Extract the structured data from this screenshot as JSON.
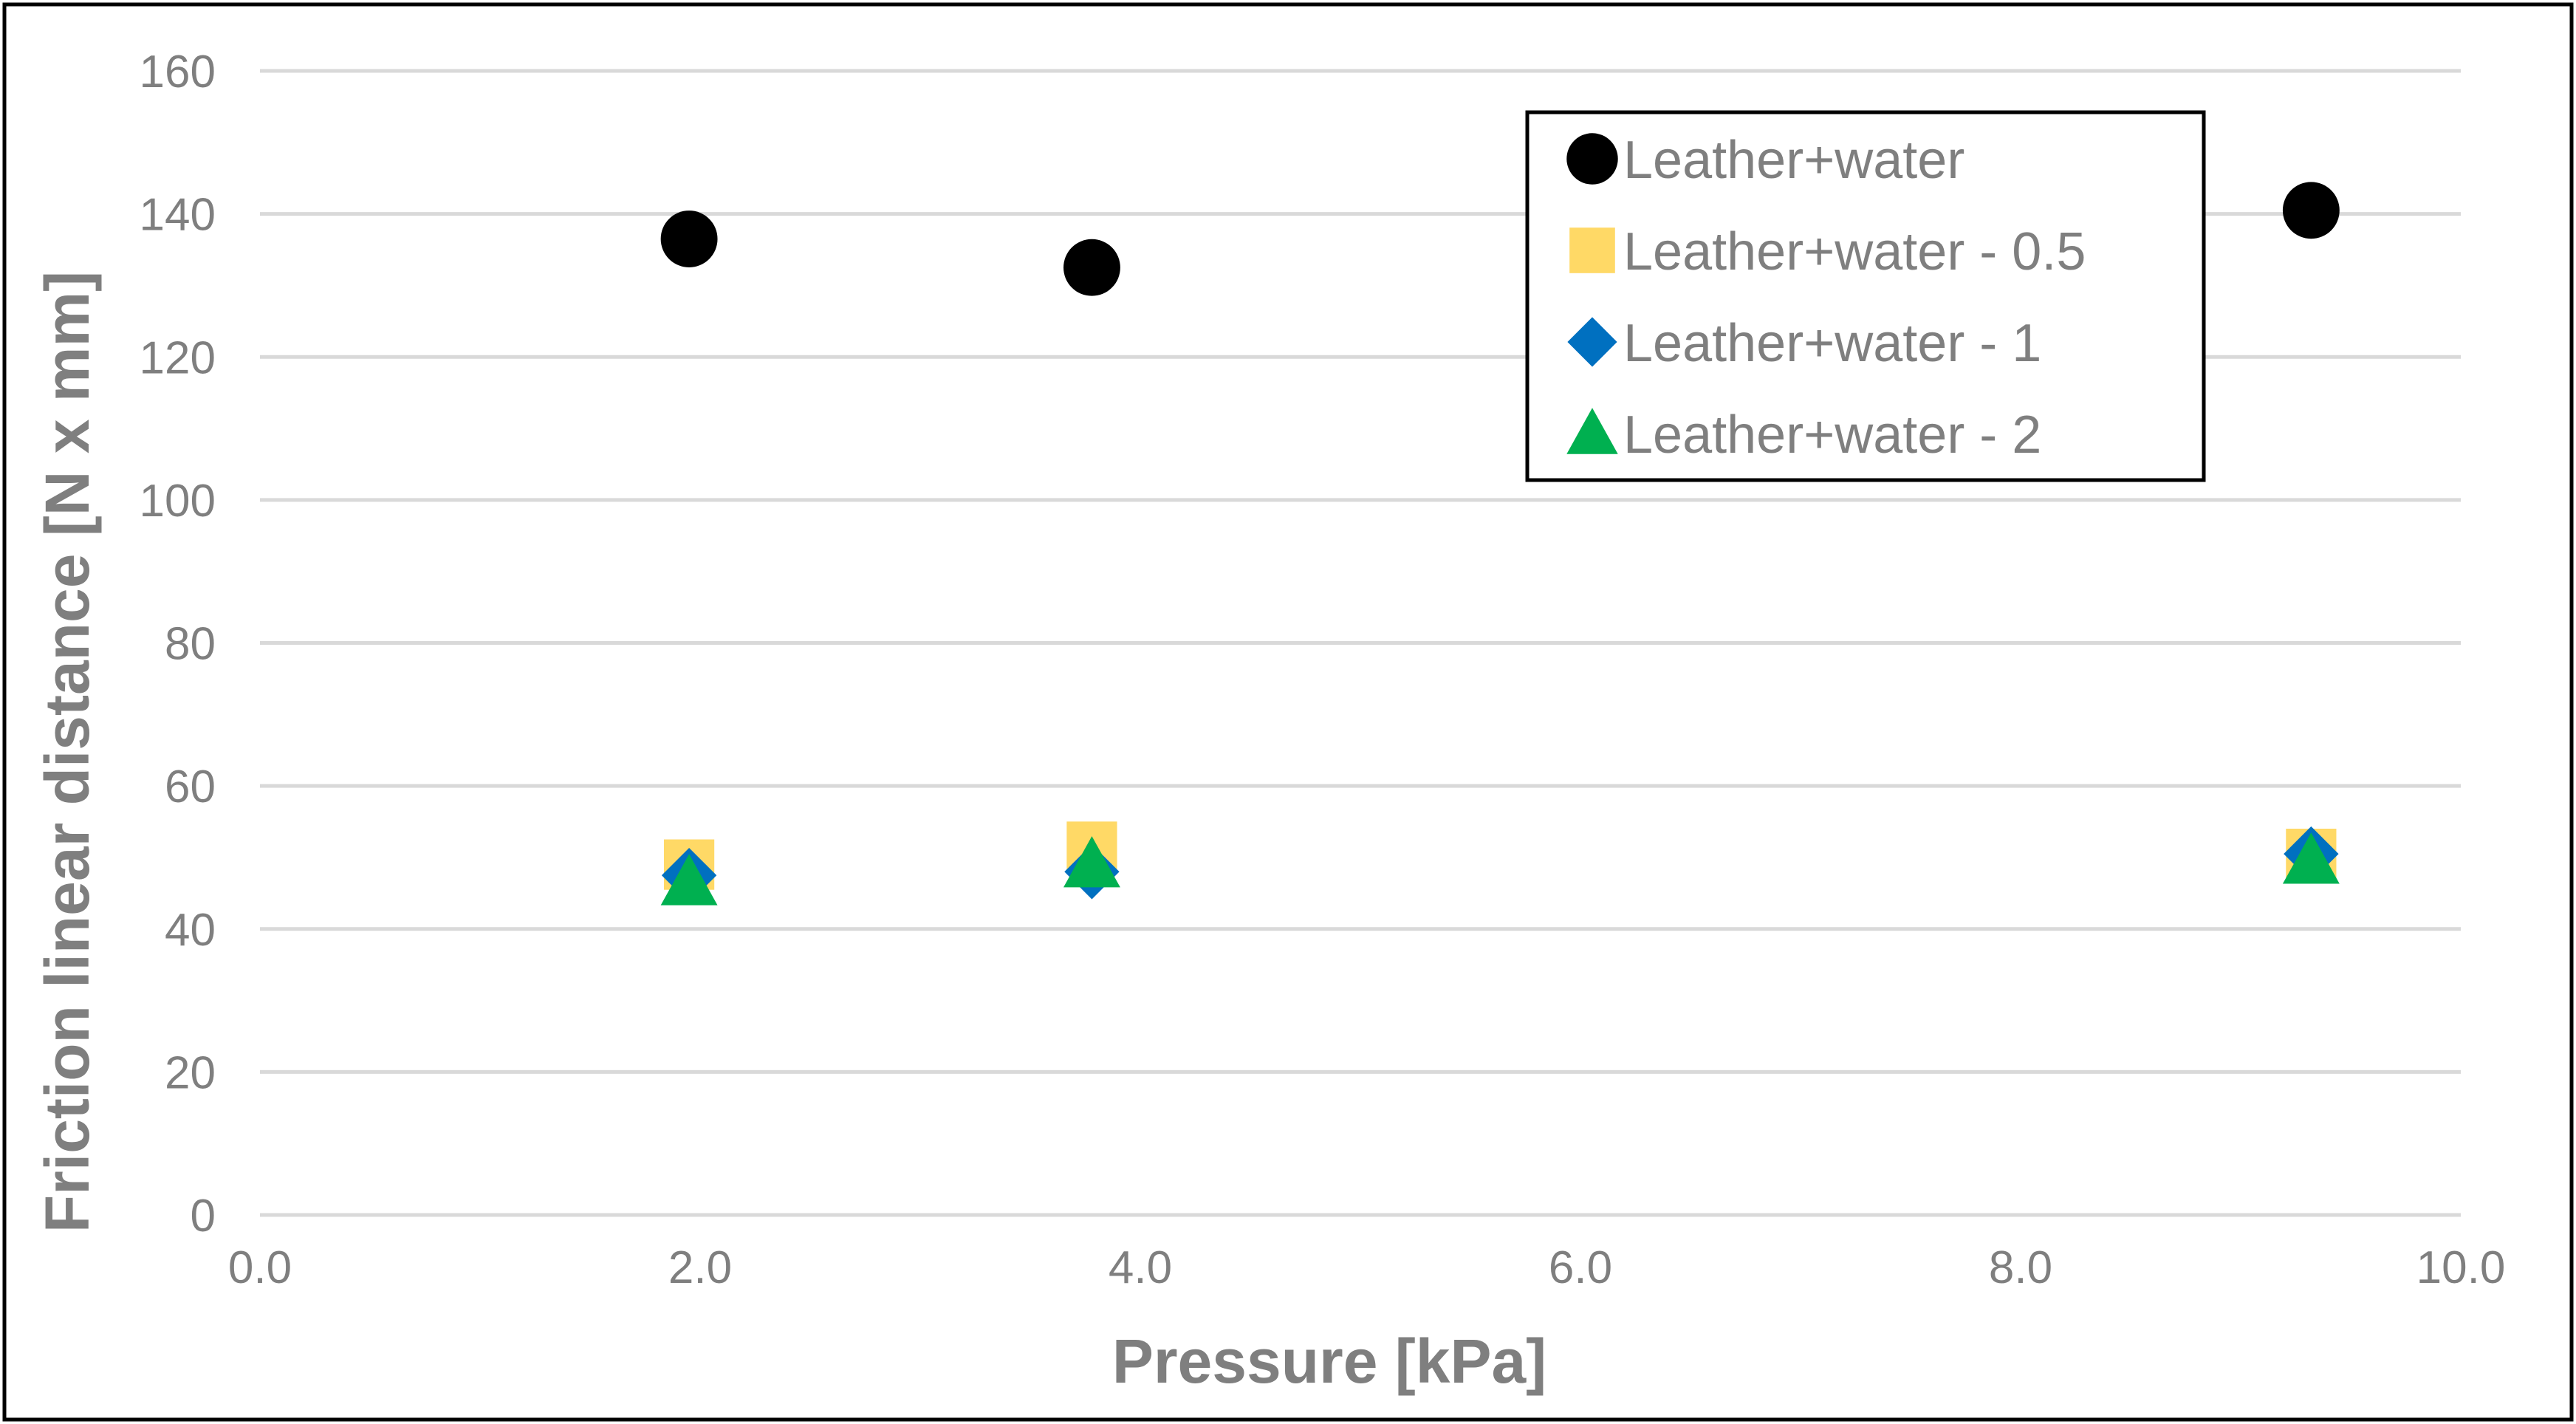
{
  "chart_data": {
    "type": "scatter",
    "title": "",
    "xlabel": "Pressure [kPa]",
    "ylabel": "Friction linear distance [N x mm]",
    "xlim": [
      0,
      10
    ],
    "ylim": [
      0,
      160
    ],
    "x_ticks": [
      "0.0",
      "2.0",
      "4.0",
      "6.0",
      "8.0",
      "10.0"
    ],
    "y_ticks": [
      "0",
      "20",
      "40",
      "60",
      "80",
      "100",
      "120",
      "140",
      "160"
    ],
    "grid": "horizontal",
    "legend_position": "top-right",
    "series": [
      {
        "name": "Leather+water",
        "marker": "circle",
        "color": "#000000",
        "points": [
          [
            1.95,
            136.5
          ],
          [
            3.78,
            132.5
          ],
          [
            9.32,
            140.5
          ]
        ]
      },
      {
        "name": "Leather+water - 0.5",
        "marker": "square",
        "color": "#FFD966",
        "points": [
          [
            1.95,
            49
          ],
          [
            3.78,
            51.5
          ],
          [
            9.32,
            50.5
          ]
        ]
      },
      {
        "name": "Leather+water - 1",
        "marker": "diamond",
        "color": "#0070C0",
        "points": [
          [
            1.95,
            47.5
          ],
          [
            3.78,
            48
          ],
          [
            9.32,
            50.5
          ]
        ]
      },
      {
        "name": "Leather+water - 2",
        "marker": "triangle",
        "color": "#00B050",
        "points": [
          [
            1.95,
            46.5
          ],
          [
            3.78,
            49
          ],
          [
            9.32,
            49.5
          ]
        ]
      }
    ]
  }
}
